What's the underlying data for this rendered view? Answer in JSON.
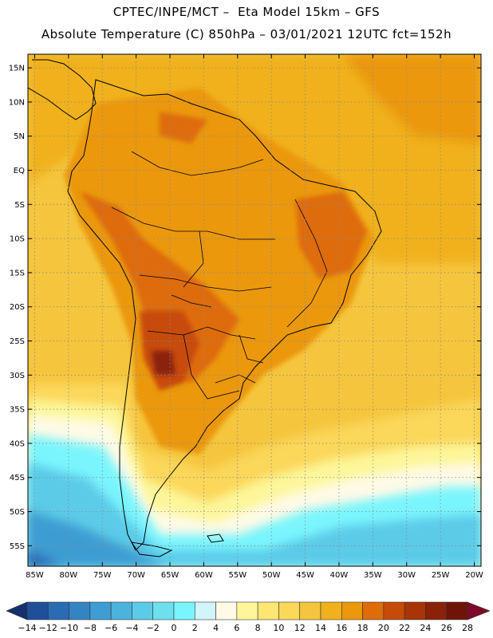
{
  "header": {
    "line1": "CPTEC/INPE/MCT –  Eta Model 15km – GFS",
    "line2": "Absolute Temperature (C) 850hPa – 03/01/2021 12UTC fct=152h"
  },
  "map": {
    "lat_labels": [
      "15N",
      "10N",
      "5N",
      "EQ",
      "5S",
      "10S",
      "15S",
      "20S",
      "25S",
      "30S",
      "35S",
      "40S",
      "45S",
      "50S",
      "55S"
    ],
    "lon_labels": [
      "85W",
      "80W",
      "75W",
      "70W",
      "65W",
      "60W",
      "55W",
      "50W",
      "45W",
      "40W",
      "35W",
      "30W",
      "25W",
      "20W"
    ],
    "lat_values": [
      15,
      10,
      5,
      0,
      -5,
      -10,
      -15,
      -20,
      -25,
      -30,
      -35,
      -40,
      -45,
      -50,
      -55
    ],
    "lon_values": [
      -85,
      -80,
      -75,
      -70,
      -65,
      -60,
      -55,
      -50,
      -45,
      -40,
      -35,
      -30,
      -25,
      -20
    ],
    "extent": {
      "lon_min": -86,
      "lon_max": -19,
      "lat_min": -58,
      "lat_max": 17
    }
  },
  "colorbar": {
    "labels": [
      "-14",
      "-12",
      "-10",
      "-8",
      "-6",
      "-4",
      "-2",
      "0",
      "2",
      "4",
      "6",
      "8",
      "10",
      "12",
      "14",
      "16",
      "18",
      "20",
      "22",
      "24",
      "26",
      "28"
    ],
    "colors": [
      "#16306e",
      "#1f4e9a",
      "#2a6bb3",
      "#3484c4",
      "#3e9dd2",
      "#4cb3dc",
      "#5ccbe8",
      "#6de0ef",
      "#7af5fd",
      "#d2f4fb",
      "#fefae6",
      "#fdf69a",
      "#fde672",
      "#fbd75a",
      "#f5c53d",
      "#f0b11d",
      "#eb980c",
      "#de6c08",
      "#c64b08",
      "#a83408",
      "#8a2208",
      "#6e1508",
      "#7d0a28"
    ]
  },
  "palette": {
    "land_warm": "#de6c08",
    "land_hot": "#a83408",
    "ocean_warm": "#f0b11d",
    "ocean_cold": "#5ccbe8",
    "border": "#000000"
  }
}
